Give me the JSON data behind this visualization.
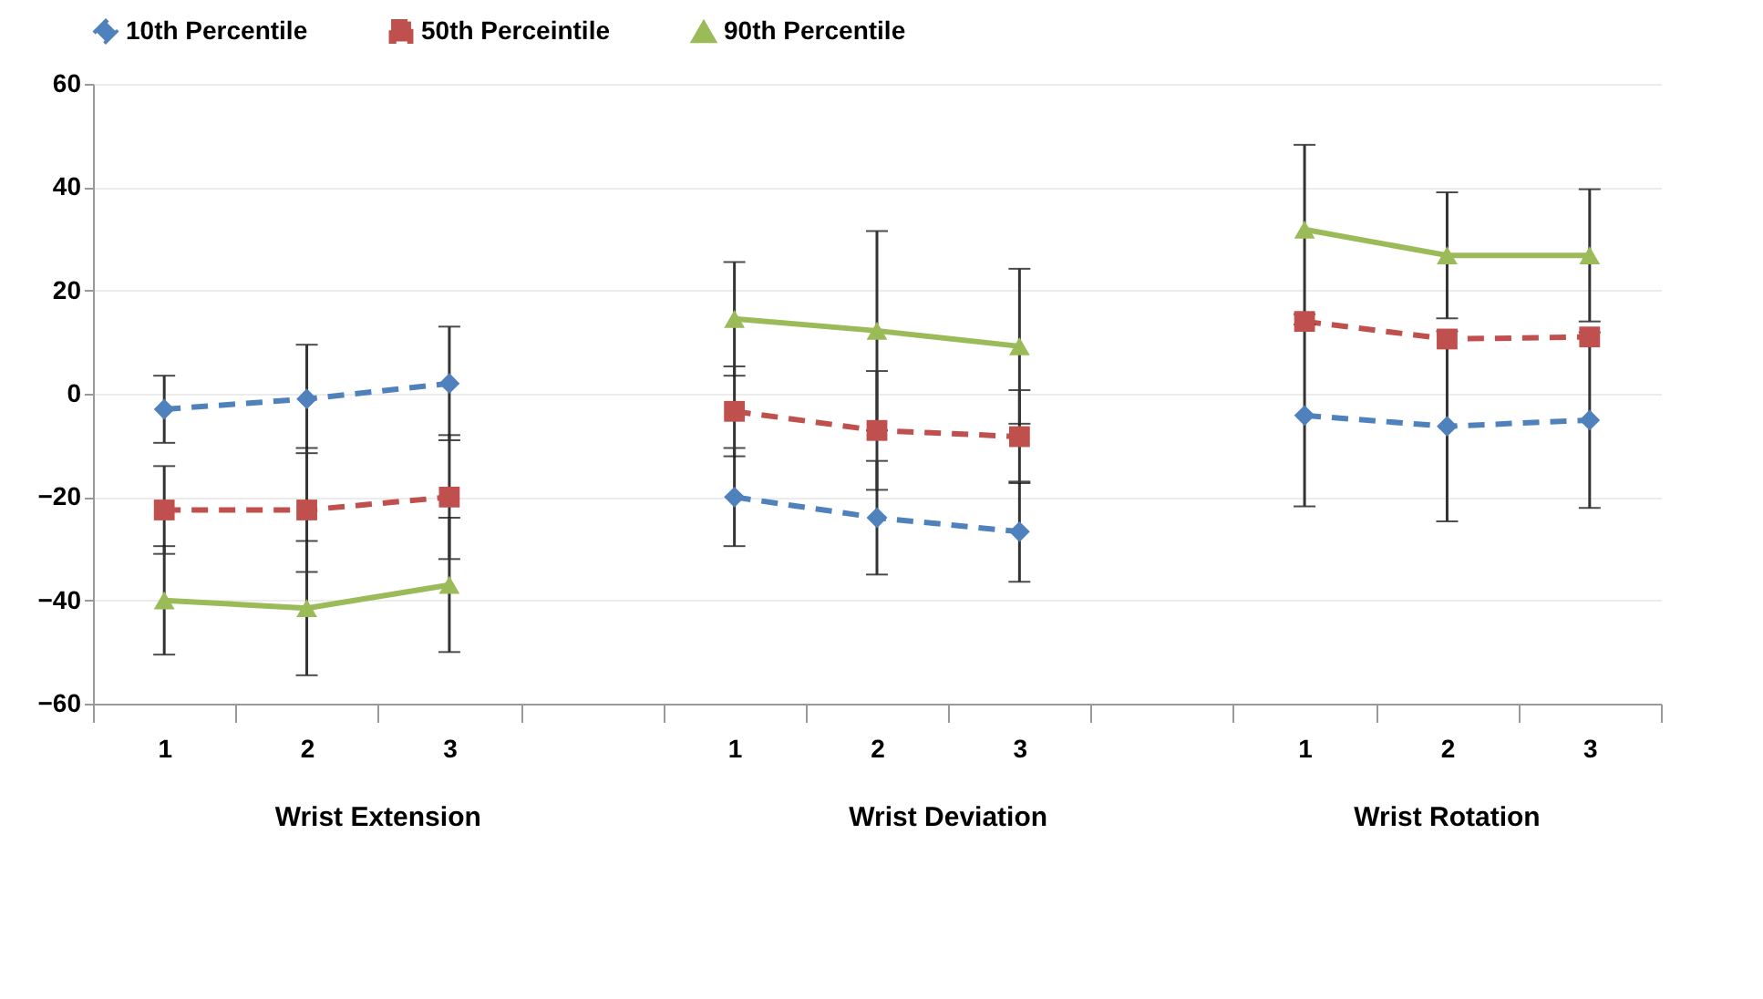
{
  "chart_data": {
    "type": "line",
    "categories": [
      "1",
      "2",
      "3",
      null,
      "1",
      "2",
      "3",
      null,
      "1",
      "2",
      "3"
    ],
    "series": [
      {
        "name": "10th Percentile",
        "color": "#4f81bd",
        "marker": "diamond",
        "line_style": "dashed",
        "values": [
          -3,
          -1,
          2,
          null,
          -20,
          -24,
          -26.7,
          null,
          -4.2,
          -6.3,
          -5.1
        ],
        "errors": [
          6.5,
          10.5,
          11,
          null,
          9.5,
          11,
          9.7,
          null,
          17.6,
          18.4,
          17
        ]
      },
      {
        "name": "50th Perceintile",
        "color": "#c0504d",
        "marker": "square",
        "line_style": "dashed",
        "values": [
          -22.5,
          -22.5,
          -20,
          null,
          -3.4,
          -7.1,
          -8.3,
          null,
          14,
          10.6,
          11
        ],
        "errors": [
          8.5,
          12,
          12,
          null,
          8.7,
          11.5,
          9,
          null,
          null,
          null,
          null
        ]
      },
      {
        "name": "90th Percentile",
        "color": "#9bbb59",
        "marker": "triangle",
        "line_style": "solid",
        "values": [
          -40,
          -41.5,
          -37,
          null,
          14.5,
          12.2,
          9.2,
          null,
          31.8,
          26.8,
          26.8
        ],
        "errors": [
          10.5,
          13,
          13,
          null,
          11,
          19.3,
          15,
          null,
          16.4,
          12.2,
          12.8
        ]
      }
    ],
    "ylim": [
      -60,
      60
    ],
    "yticks": [
      -60,
      -40,
      -20,
      0,
      20,
      40,
      60
    ],
    "grid": "y",
    "legend": "top",
    "annotations": [
      "Wrist Extension",
      "Wrist Deviation",
      "Wrist Rotation"
    ]
  }
}
